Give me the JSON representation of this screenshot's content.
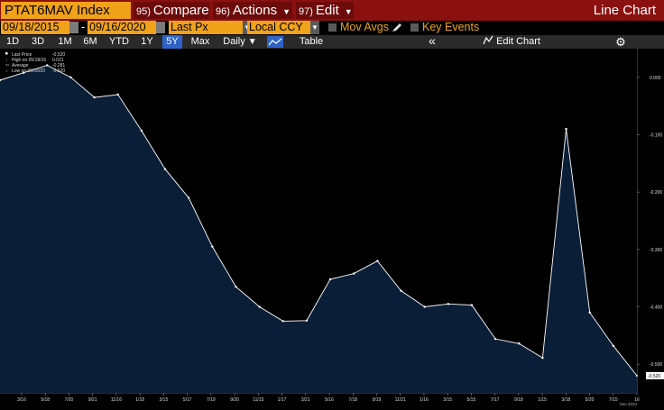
{
  "header": {
    "ticker": "PTAT6MAV Index",
    "compare": {
      "num": "95)",
      "label": "Compare"
    },
    "actions": {
      "num": "96)",
      "label": "Actions"
    },
    "edit": {
      "num": "97)",
      "label": "Edit"
    },
    "chart_type": "Line Chart"
  },
  "controls": {
    "start_date": "09/18/2015",
    "end_date": "09/16/2020",
    "date_sep": "-",
    "field": "Last Px",
    "currency": "Local CCY",
    "mov_avgs": "Mov Avgs",
    "key_events": "Key Events"
  },
  "toolbar": {
    "periods": [
      "1D",
      "3D",
      "1M",
      "6M",
      "YTD",
      "1Y",
      "5Y",
      "Max"
    ],
    "active_period": "5Y",
    "frequency": "Daily",
    "table": "Table",
    "edit_chart": "Edit Chart",
    "collapse_glyph": "«"
  },
  "legend": {
    "last_price": {
      "label": "Last Price",
      "value": "-0.520"
    },
    "high": {
      "label": "High on 05/18/16",
      "value": "0.021"
    },
    "average": {
      "label": "Average",
      "value": "-0.281"
    },
    "low": {
      "label": "Low on 09/16/20",
      "value": "-0.520"
    }
  },
  "colors": {
    "title_bar": "#8b1010",
    "accent": "#f0a21b",
    "line": "#ffffff",
    "area": "#0b1e38"
  },
  "chart_data": {
    "type": "area",
    "title": "",
    "x": [
      "3/16",
      "5/16",
      "7/16",
      "9/16",
      "11/16",
      "1/17",
      "3/17",
      "5/17",
      "7/17",
      "9/17",
      "11/17",
      "1/18",
      "3/18",
      "5/18",
      "7/18",
      "9/18",
      "11/18",
      "1/19",
      "3/19",
      "5/19",
      "7/19",
      "9/19",
      "11/19",
      "1/20",
      "3/20",
      "5/20",
      "7/20",
      "9/20"
    ],
    "series": [
      {
        "values": [
          -0.005,
          0.008,
          0.021,
          0.0,
          -0.035,
          -0.03,
          -0.093,
          -0.16,
          -0.21,
          -0.295,
          -0.365,
          -0.4,
          -0.425,
          -0.424,
          -0.352,
          -0.342,
          -0.32,
          -0.372,
          -0.4,
          -0.395,
          -0.397,
          -0.456,
          -0.464,
          -0.489,
          -0.09,
          -0.41,
          -0.468,
          -0.52
        ]
      }
    ],
    "x_ticks": [
      "3/16",
      "5/18",
      "7/20",
      "9/21",
      "11/16",
      "1/18",
      "3/15",
      "5/17",
      "7/19",
      "9/20",
      "11/15",
      "1/17",
      "3/21",
      "5/16",
      "7/18",
      "9/19",
      "11/21",
      "1/16",
      "3/15",
      "5/15",
      "7/17",
      "9/18",
      "1/15",
      "3/18",
      "5/20",
      "7/15",
      "16"
    ],
    "x_sub_label": "Sep 2020",
    "y_ticks": [
      "0.000",
      "-0.100",
      "-0.200",
      "-0.300",
      "-0.400",
      "-0.500"
    ],
    "y_tick_values": [
      0.0,
      -0.1,
      -0.2,
      -0.3,
      -0.4,
      -0.5
    ],
    "last_value_label": "-0.520",
    "ylim": [
      -0.55,
      0.05
    ],
    "grid": false,
    "legend_position": "top-left"
  }
}
